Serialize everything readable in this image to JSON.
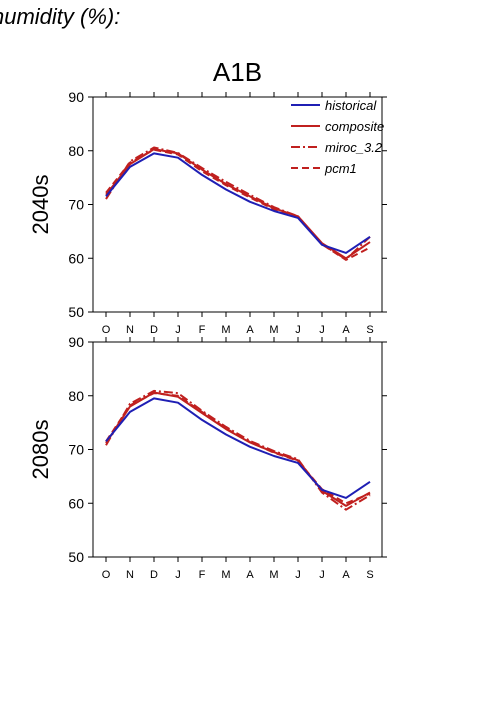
{
  "page": {
    "heading": "humidity (%):"
  },
  "chart_data": [
    {
      "type": "line",
      "title": "A1B",
      "ylabel": "2040s",
      "xlabel": "",
      "categories": [
        "O",
        "N",
        "D",
        "J",
        "F",
        "M",
        "A",
        "M",
        "J",
        "J",
        "A",
        "S"
      ],
      "ylim": [
        50,
        90
      ],
      "yticks": [
        50,
        60,
        70,
        80,
        90
      ],
      "grid": false,
      "legend": "top-right",
      "series": [
        {
          "name": "historical",
          "color": "#1f1fb4",
          "dash": "solid",
          "values": [
            71.5,
            77.0,
            79.5,
            78.7,
            75.5,
            72.8,
            70.5,
            68.8,
            67.5,
            62.5,
            61.0,
            64.0
          ]
        },
        {
          "name": "composite",
          "color": "#c0201f",
          "dash": "solid",
          "values": [
            71.8,
            77.5,
            80.3,
            79.5,
            76.5,
            73.8,
            71.5,
            69.3,
            67.8,
            62.8,
            60.0,
            63.0
          ]
        },
        {
          "name": "miroc_3.2",
          "color": "#c0201f",
          "dash": "dashdot",
          "values": [
            71.0,
            78.0,
            80.6,
            79.6,
            76.8,
            74.2,
            71.8,
            69.5,
            67.8,
            62.6,
            59.8,
            64.0
          ]
        },
        {
          "name": "pcm1",
          "color": "#c0201f",
          "dash": "dash",
          "values": [
            72.2,
            77.8,
            80.2,
            79.3,
            76.2,
            73.6,
            71.3,
            69.1,
            67.6,
            62.6,
            59.7,
            62.0
          ]
        }
      ]
    },
    {
      "type": "line",
      "title": "",
      "ylabel": "2080s",
      "xlabel": "",
      "categories": [
        "O",
        "N",
        "D",
        "J",
        "F",
        "M",
        "A",
        "M",
        "J",
        "J",
        "A",
        "S"
      ],
      "ylim": [
        50,
        90
      ],
      "yticks": [
        50,
        60,
        70,
        80,
        90
      ],
      "grid": false,
      "series": [
        {
          "name": "historical",
          "color": "#1f1fb4",
          "dash": "solid",
          "values": [
            71.5,
            77.0,
            79.5,
            78.7,
            75.5,
            72.8,
            70.5,
            68.8,
            67.5,
            62.5,
            61.0,
            64.0
          ]
        },
        {
          "name": "composite",
          "color": "#c0201f",
          "dash": "solid",
          "values": [
            71.2,
            78.0,
            80.6,
            79.8,
            76.8,
            73.8,
            71.3,
            69.5,
            68.0,
            62.3,
            59.5,
            62.0
          ]
        },
        {
          "name": "miroc_3.2",
          "color": "#c0201f",
          "dash": "dashdot",
          "values": [
            70.8,
            78.5,
            80.9,
            80.5,
            77.2,
            74.2,
            71.6,
            69.7,
            68.2,
            62.0,
            58.8,
            61.5
          ]
        },
        {
          "name": "pcm1",
          "color": "#c0201f",
          "dash": "dash",
          "values": [
            71.5,
            78.2,
            80.5,
            80.0,
            77.0,
            73.9,
            71.4,
            69.4,
            67.9,
            62.6,
            60.0,
            61.8
          ]
        }
      ]
    }
  ]
}
